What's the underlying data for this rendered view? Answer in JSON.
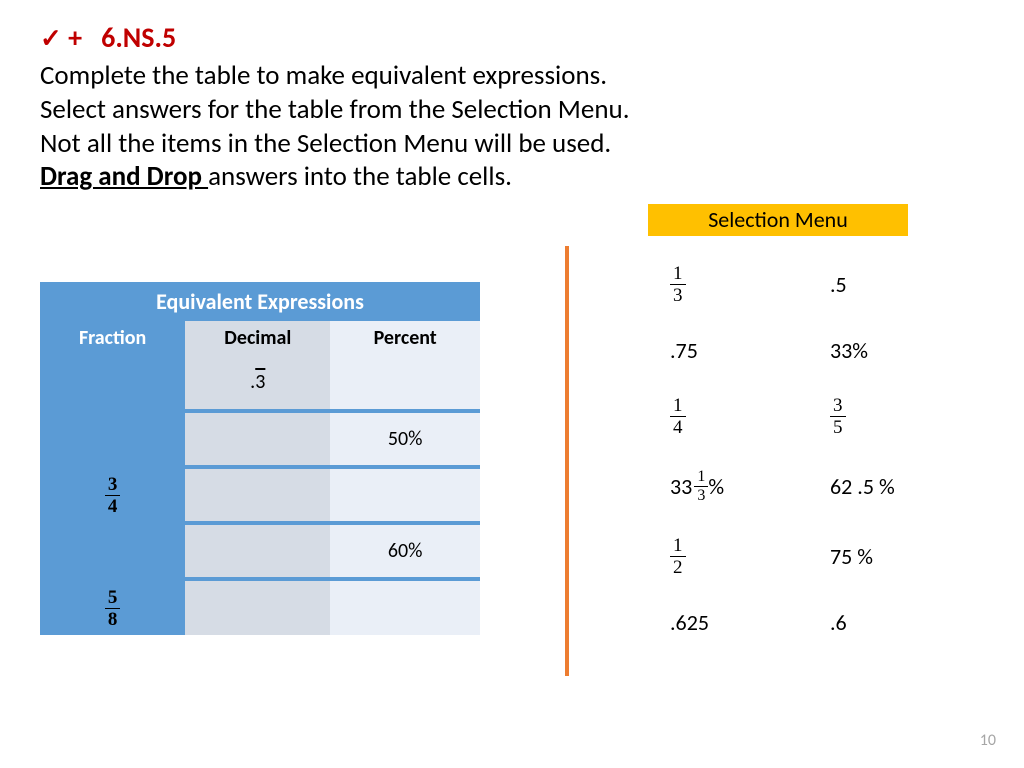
{
  "header": {
    "check_symbol": "✓",
    "plus_symbol": "+",
    "standard_code": "6.NS.5",
    "instruction_line1": "Complete the table to make equivalent expressions.",
    "instruction_line2": "Select answers for the table from the Selection Menu.",
    "instruction_line3": "Not all the items in the Selection Menu will be used.",
    "drag_drop_label": "Drag and Drop ",
    "instruction_line4_rest": "answers into the table cells."
  },
  "table": {
    "title": "Equivalent Expressions",
    "columns": [
      "Fraction",
      "Decimal",
      "Percent"
    ],
    "rows": [
      {
        "fraction_num": "",
        "fraction_den": "",
        "decimal_prefix": ".",
        "decimal_overline": "3",
        "percent": ""
      },
      {
        "fraction_num": "",
        "fraction_den": "",
        "decimal_prefix": "",
        "decimal_overline": "",
        "percent": "50%"
      },
      {
        "fraction_num": "3",
        "fraction_den": "4",
        "decimal_prefix": "",
        "decimal_overline": "",
        "percent": ""
      },
      {
        "fraction_num": "",
        "fraction_den": "",
        "decimal_prefix": "",
        "decimal_overline": "",
        "percent": "60%"
      },
      {
        "fraction_num": "5",
        "fraction_den": "8",
        "decimal_prefix": "",
        "decimal_overline": "",
        "percent": ""
      }
    ]
  },
  "selection_menu": {
    "title": "Selection Menu",
    "items": [
      {
        "type": "fraction",
        "num": "1",
        "den": "3"
      },
      {
        "type": "text",
        "text": ".5"
      },
      {
        "type": "text",
        "text": ".75"
      },
      {
        "type": "text",
        "text": "33%"
      },
      {
        "type": "fraction",
        "num": "1",
        "den": "4"
      },
      {
        "type": "fraction",
        "num": "3",
        "den": "5"
      },
      {
        "type": "mixed",
        "whole": "33",
        "num": "1",
        "den": "3",
        "suffix": " %"
      },
      {
        "type": "text",
        "text": "62 .5 %"
      },
      {
        "type": "fraction",
        "num": "1",
        "den": "2"
      },
      {
        "type": "text",
        "text": "75 %"
      },
      {
        "type": "text",
        "text": ".625"
      },
      {
        "type": "text",
        "text": ".6"
      }
    ]
  },
  "page_number": "10",
  "colors": {
    "accent_red": "#c00000",
    "menu_header_bg": "#ffc000",
    "divider": "#ed7d31",
    "table_primary": "#5b9bd5",
    "table_light1": "#d6dce5",
    "table_light2": "#eaeff7",
    "page_num": "#a6a6a6"
  }
}
